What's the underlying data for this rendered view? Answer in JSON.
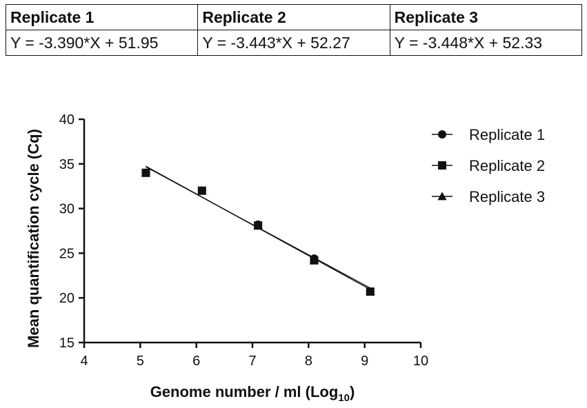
{
  "equations_table": {
    "headers": [
      "Replicate 1",
      "Replicate 2",
      "Replicate 3"
    ],
    "values": [
      "Y = -3.390*X + 51.95",
      "Y = -3.443*X + 52.27",
      "Y = -3.448*X + 52.33"
    ]
  },
  "chart_data": {
    "type": "scatter",
    "title": "",
    "xlabel": "Genome number / ml (Log",
    "xlabel_sub": "10",
    "xlabel_end": ")",
    "ylabel": "Mean quantification cycle (Cq)",
    "xlim": [
      4,
      10
    ],
    "ylim": [
      15,
      40
    ],
    "xticks": [
      4,
      5,
      6,
      7,
      8,
      9,
      10
    ],
    "yticks": [
      15,
      20,
      25,
      30,
      35,
      40
    ],
    "legend_position": "top-right",
    "series": [
      {
        "name": "Replicate 1",
        "marker": "circle",
        "x": [
          5.1,
          6.1,
          7.1,
          8.1,
          9.1
        ],
        "y": [
          34.0,
          32.0,
          28.2,
          24.4,
          20.7
        ],
        "fit": {
          "slope": -3.39,
          "intercept": 51.95
        }
      },
      {
        "name": "Replicate 2",
        "marker": "square",
        "x": [
          5.1,
          6.1,
          7.1,
          8.1,
          9.1
        ],
        "y": [
          34.0,
          32.0,
          28.1,
          24.2,
          20.7
        ],
        "fit": {
          "slope": -3.443,
          "intercept": 52.27
        }
      },
      {
        "name": "Replicate 3",
        "marker": "triangle",
        "x": [
          5.1,
          6.1,
          7.1,
          8.1,
          9.1
        ],
        "y": [
          34.0,
          32.0,
          28.1,
          24.2,
          20.7
        ],
        "fit": {
          "slope": -3.448,
          "intercept": 52.33
        }
      }
    ]
  }
}
